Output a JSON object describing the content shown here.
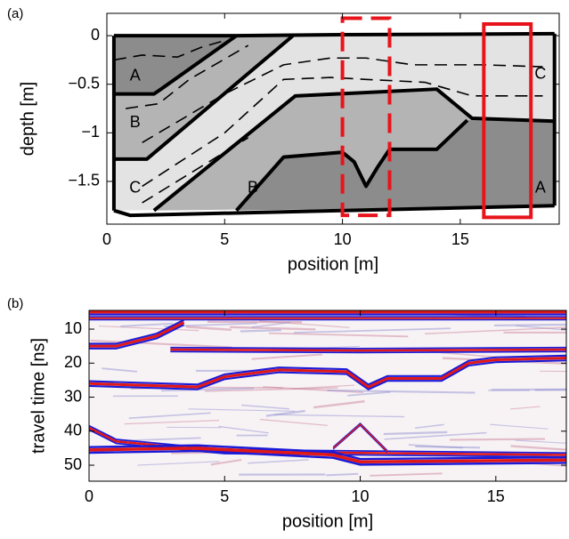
{
  "chart_data": [
    {
      "type": "section",
      "label": "(a)",
      "xlabel": "position [m]",
      "ylabel": "depth [m]",
      "xlim": [
        0,
        19.2
      ],
      "ylim": [
        -1.94,
        0.23
      ],
      "xticks": [
        0,
        5,
        10,
        15
      ],
      "yticks": [
        0,
        {
          "value": -0.5,
          "label": "−0.5"
        },
        {
          "value": -1,
          "label": "−1"
        },
        {
          "value": -1.5,
          "label": "−1.5"
        }
      ],
      "annotations": [
        "A",
        "B",
        "C",
        "B",
        "C",
        "A"
      ]
    },
    {
      "type": "radargram",
      "label": "(b)",
      "xlabel": "position [m]",
      "ylabel": "travel time [ns]",
      "xlim": [
        0,
        17.6
      ],
      "ylim": [
        54.7,
        4.5
      ],
      "xticks": [
        0,
        5,
        10,
        15
      ],
      "yticks": [
        10,
        20,
        30,
        40,
        50
      ]
    }
  ]
}
